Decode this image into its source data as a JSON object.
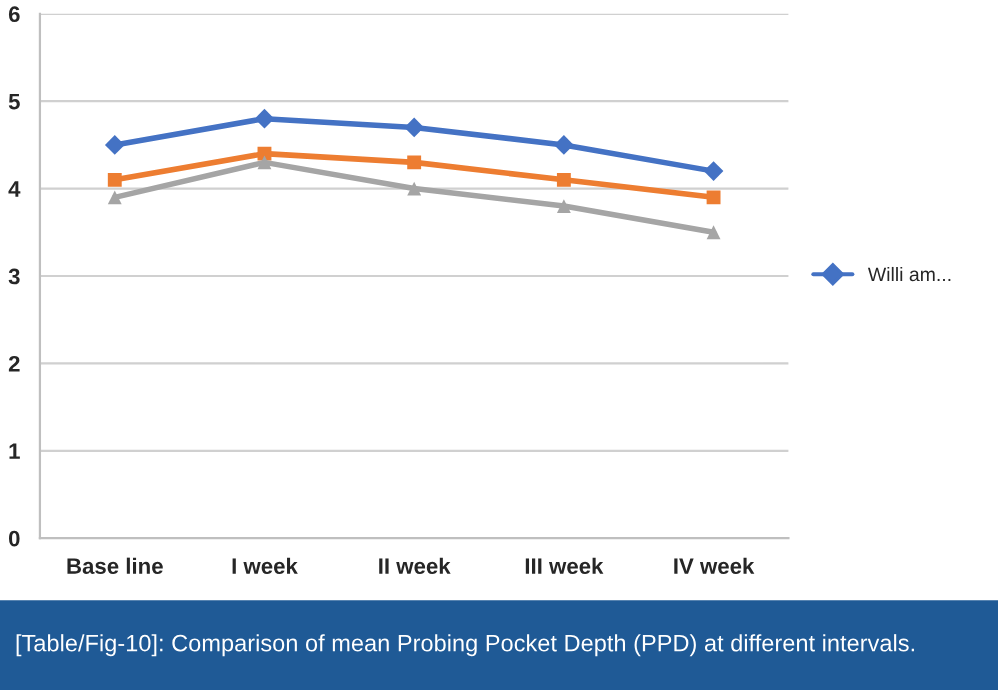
{
  "chart_data": {
    "type": "line",
    "categories": [
      "Base line",
      "I week",
      "II week",
      "III week",
      "IV week"
    ],
    "series": [
      {
        "name": "Willi am...",
        "color": "#4472c4",
        "marker": "diamond",
        "values": [
          4.5,
          4.8,
          4.7,
          4.5,
          4.2
        ]
      },
      {
        "color": "#ed7d31",
        "marker": "square",
        "values": [
          4.1,
          4.4,
          4.3,
          4.1,
          3.9
        ]
      },
      {
        "color": "#a5a5a5",
        "marker": "triangle",
        "values": [
          3.9,
          4.3,
          4.0,
          3.8,
          3.5
        ]
      }
    ],
    "ylim": [
      0,
      6
    ],
    "yticks": [
      0,
      1,
      2,
      3,
      4,
      5,
      6
    ],
    "grid": "y",
    "legend": "right",
    "line_style": "solid",
    "annotations": [
      "[Table/Fig-10]: Comparison of mean Probing Pocket Depth (PPD) at different intervals."
    ]
  }
}
